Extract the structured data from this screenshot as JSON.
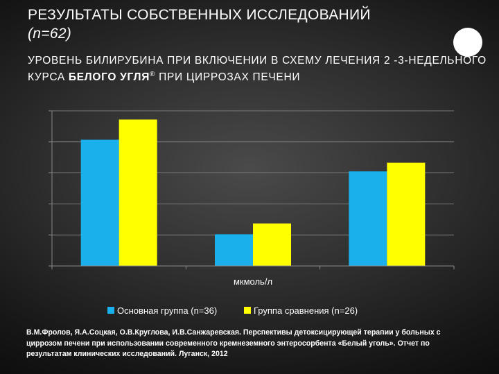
{
  "header": {
    "title": "РЕЗУЛЬТАТЫ СОБСТВЕННЫХ ИССЛЕДОВАНИЙ",
    "subtitle": "(n=62)"
  },
  "heading": {
    "part1": "УРОВЕНЬ БИЛИРУБИНА ПРИ ВКЛЮЧЕНИИ В СХЕМУ ЛЕЧЕНИЯ 2 -3-НЕДЕЛЬНОГО КУРСА ",
    "bold": "БЕЛОГО УГЛЯ",
    "reg_mark": "®",
    "part2": " ПРИ ЦИРРОЗАХ ПЕЧЕНИ"
  },
  "chart_data": {
    "type": "bar",
    "categories": [
      "",
      "",
      ""
    ],
    "ylim": [
      0,
      5
    ],
    "grid": true,
    "xlabel": "мкмоль/л",
    "ylabel": "",
    "legend_position": "bottom",
    "series": [
      {
        "name": "Основная группа (n=36)",
        "color": "#1ab0ec",
        "values": [
          4.07,
          1.02,
          3.05
        ]
      },
      {
        "name": "Группа сравнения (n=26)",
        "color": "#ffff00",
        "values": [
          4.72,
          1.37,
          3.33
        ]
      }
    ]
  },
  "footnote": "В.М.Фролов, Я.А.Соцкая, О.В.Круглова, И.В.Санжаревская. Перспективы детоксицирующей терапии у больных с циррозом печени при использовании современного кремнеземного энтеросорбента «Белый уголь». Отчет по результатам клинических исследований. Луганск, 2012"
}
